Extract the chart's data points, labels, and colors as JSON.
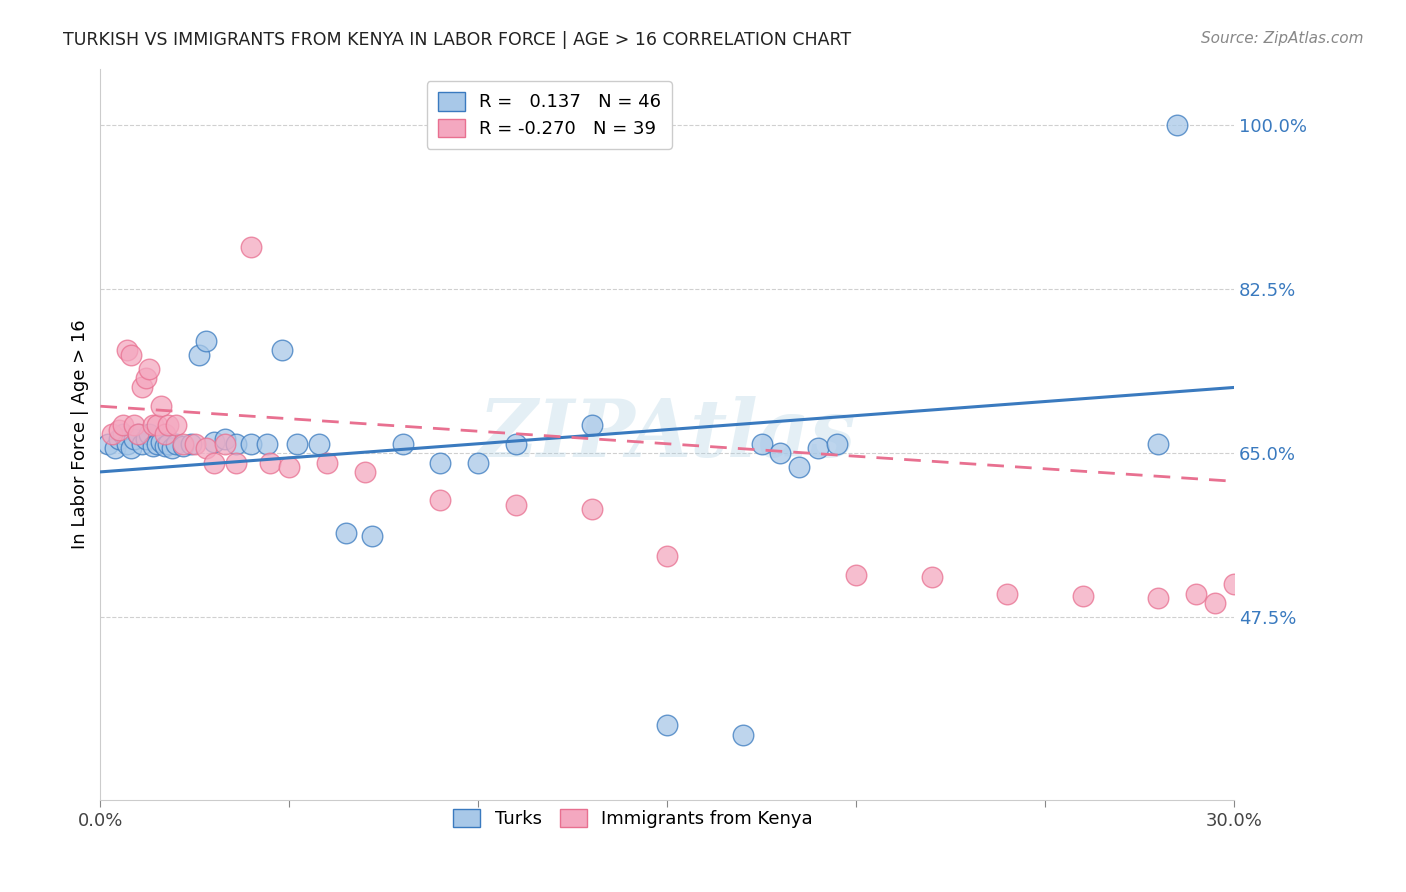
{
  "title": "TURKISH VS IMMIGRANTS FROM KENYA IN LABOR FORCE | AGE > 16 CORRELATION CHART",
  "source": "Source: ZipAtlas.com",
  "ylabel": "In Labor Force | Age > 16",
  "ytick_labels": [
    "100.0%",
    "82.5%",
    "65.0%",
    "47.5%"
  ],
  "ytick_values": [
    1.0,
    0.825,
    0.65,
    0.475
  ],
  "xlim": [
    0.0,
    0.3
  ],
  "ylim": [
    0.28,
    1.06
  ],
  "color_blue": "#a8c8e8",
  "color_pink": "#f4a8c0",
  "line_blue": "#3a7abf",
  "line_pink": "#e87090",
  "turks_x": [
    0.002,
    0.004,
    0.005,
    0.006,
    0.007,
    0.008,
    0.009,
    0.01,
    0.011,
    0.012,
    0.013,
    0.014,
    0.015,
    0.016,
    0.017,
    0.018,
    0.019,
    0.02,
    0.022,
    0.024,
    0.026,
    0.028,
    0.03,
    0.033,
    0.036,
    0.04,
    0.044,
    0.048,
    0.052,
    0.058,
    0.065,
    0.072,
    0.08,
    0.09,
    0.1,
    0.11,
    0.13,
    0.15,
    0.17,
    0.175,
    0.18,
    0.185,
    0.19,
    0.195,
    0.28,
    0.285
  ],
  "turks_y": [
    0.66,
    0.655,
    0.665,
    0.67,
    0.66,
    0.655,
    0.665,
    0.67,
    0.66,
    0.665,
    0.67,
    0.658,
    0.66,
    0.662,
    0.658,
    0.66,
    0.655,
    0.66,
    0.658,
    0.66,
    0.755,
    0.77,
    0.662,
    0.665,
    0.66,
    0.66,
    0.66,
    0.76,
    0.66,
    0.66,
    0.565,
    0.562,
    0.66,
    0.64,
    0.64,
    0.66,
    0.68,
    0.36,
    0.35,
    0.66,
    0.65,
    0.635,
    0.655,
    0.66,
    0.66,
    1.0
  ],
  "kenya_x": [
    0.003,
    0.005,
    0.006,
    0.007,
    0.008,
    0.009,
    0.01,
    0.011,
    0.012,
    0.013,
    0.014,
    0.015,
    0.016,
    0.017,
    0.018,
    0.02,
    0.022,
    0.025,
    0.028,
    0.03,
    0.033,
    0.036,
    0.04,
    0.045,
    0.05,
    0.06,
    0.07,
    0.09,
    0.11,
    0.13,
    0.15,
    0.2,
    0.22,
    0.24,
    0.26,
    0.28,
    0.29,
    0.295,
    0.3
  ],
  "kenya_y": [
    0.67,
    0.675,
    0.68,
    0.76,
    0.755,
    0.68,
    0.67,
    0.72,
    0.73,
    0.74,
    0.68,
    0.68,
    0.7,
    0.67,
    0.68,
    0.68,
    0.66,
    0.66,
    0.655,
    0.64,
    0.66,
    0.64,
    0.87,
    0.64,
    0.635,
    0.64,
    0.63,
    0.6,
    0.595,
    0.59,
    0.54,
    0.52,
    0.518,
    0.5,
    0.498,
    0.496,
    0.5,
    0.49,
    0.51
  ],
  "blue_line_y0": 0.63,
  "blue_line_y1": 0.72,
  "pink_line_y0": 0.7,
  "pink_line_y1": 0.62,
  "watermark": "ZIPAtlas",
  "background_color": "#ffffff",
  "grid_color": "#d0d0d0"
}
